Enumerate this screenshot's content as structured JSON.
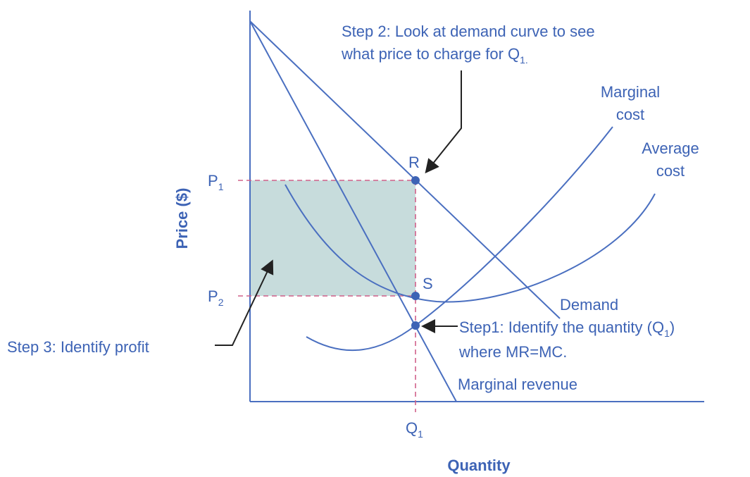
{
  "diagram": {
    "axes": {
      "y_label": "Price ($)",
      "x_label": "Quantity"
    },
    "ticks": {
      "p1": {
        "text": "P",
        "sub": "1"
      },
      "p2": {
        "text": "P",
        "sub": "2"
      },
      "q1": {
        "text": "Q",
        "sub": "1"
      }
    },
    "points": {
      "r": "R",
      "s": "S"
    },
    "curves": {
      "marginal_cost": [
        "Marginal",
        "cost"
      ],
      "average_cost": [
        "Average",
        "cost"
      ],
      "demand": "Demand",
      "marginal_revenue": "Marginal revenue"
    },
    "steps": {
      "step2": {
        "line1": "Step 2: Look at demand curve to see",
        "line2": {
          "text": "what price to charge for Q",
          "sub": "1",
          "after": "."
        }
      },
      "step1": {
        "line1": {
          "text": "Step1: Identify the quantity (Q",
          "sub": "1",
          "after": ")"
        },
        "line2": "where MR=MC."
      },
      "step3": "Step 3: Identify profit"
    }
  }
}
